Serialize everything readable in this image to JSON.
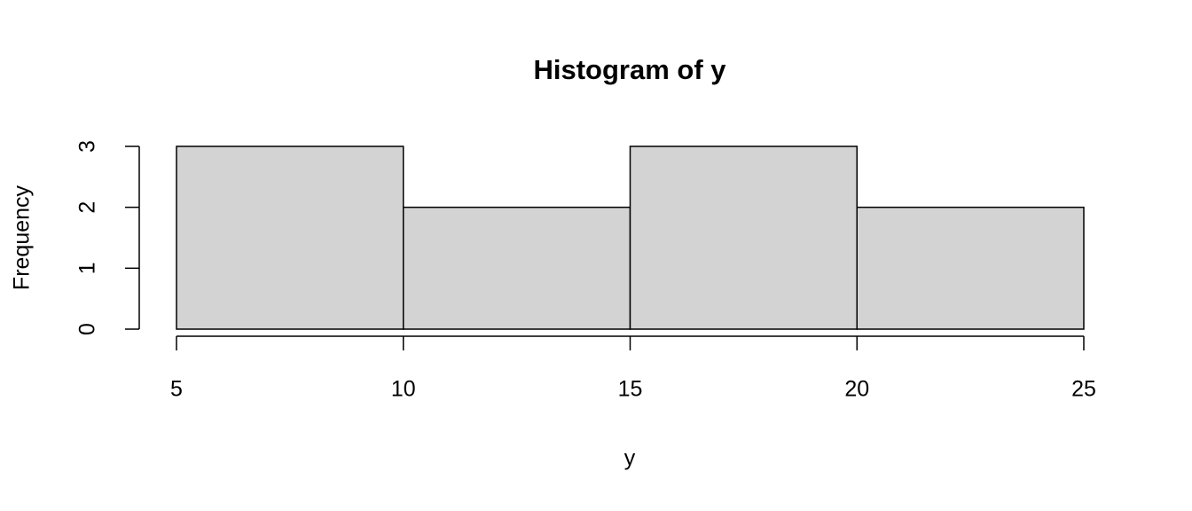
{
  "chart_data": {
    "type": "histogram",
    "title": "Histogram of y",
    "x_label": "y",
    "y_label": "Frequency",
    "bins": [
      5,
      10,
      15,
      20,
      25
    ],
    "values": [
      3,
      2,
      3,
      2
    ],
    "color": "#d3d3d3",
    "xlim": [
      5,
      25
    ],
    "xticks": [
      5,
      10,
      15,
      20,
      25
    ],
    "ylim": [
      0,
      3
    ],
    "yticks": [
      0,
      1,
      2,
      3
    ]
  }
}
